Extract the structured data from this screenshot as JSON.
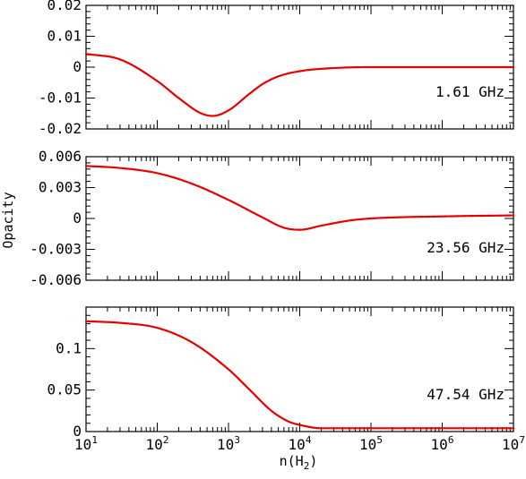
{
  "chart_data": {
    "type": "line",
    "xscale": "log",
    "xlim": [
      10,
      10000000
    ],
    "x_tick_labels": [
      {
        "base": "10",
        "exp": "1"
      },
      {
        "base": "10",
        "exp": "2"
      },
      {
        "base": "10",
        "exp": "3"
      },
      {
        "base": "10",
        "exp": "4"
      },
      {
        "base": "10",
        "exp": "5"
      },
      {
        "base": "10",
        "exp": "6"
      },
      {
        "base": "10",
        "exp": "7"
      }
    ],
    "xlabel": {
      "main": "n(H",
      "sub": "2",
      "close": ")"
    },
    "ylabel": "Opacity",
    "line_color": "#e60000",
    "panels": [
      {
        "label": "1.61 GHz",
        "ylim": [
          -0.02,
          0.02
        ],
        "y_ticks": [
          -0.02,
          -0.01,
          0,
          0.01,
          0.02
        ],
        "y_tick_labels": [
          "-0.02",
          "-0.01",
          "0",
          "0.01",
          "0.02"
        ],
        "x": [
          10,
          30,
          100,
          200,
          400,
          600,
          1000,
          2000,
          3000,
          5000,
          10000,
          30000,
          100000,
          1000000,
          10000000
        ],
        "y": [
          0.0043,
          0.0025,
          -0.0045,
          -0.01,
          -0.0148,
          -0.0158,
          -0.014,
          -0.0085,
          -0.0055,
          -0.003,
          -0.0013,
          -0.0003,
          0.0,
          0.0,
          0.0
        ]
      },
      {
        "label": "23.56 GHz",
        "ylim": [
          -0.006,
          0.006
        ],
        "y_ticks": [
          -0.006,
          -0.003,
          0,
          0.003,
          0.006
        ],
        "y_tick_labels": [
          "-0.006",
          "-0.003",
          "0",
          "0.003",
          "0.006"
        ],
        "x": [
          10,
          30,
          100,
          300,
          1000,
          3000,
          6000,
          10000,
          20000,
          50000,
          100000,
          1000000,
          10000000
        ],
        "y": [
          0.0051,
          0.0049,
          0.0044,
          0.0034,
          0.0018,
          0.0001,
          -0.0009,
          -0.0011,
          -0.0007,
          -0.0002,
          0.0,
          0.0002,
          0.0003
        ]
      },
      {
        "label": "47.54 GHz",
        "ylim": [
          0,
          0.15
        ],
        "y_ticks": [
          0,
          0.05,
          0.1
        ],
        "y_tick_labels": [
          "0",
          "0.05",
          "0.1"
        ],
        "x": [
          10,
          30,
          100,
          300,
          1000,
          2000,
          4000,
          7000,
          10000,
          20000,
          100000,
          10000000
        ],
        "y": [
          0.133,
          0.131,
          0.125,
          0.108,
          0.075,
          0.05,
          0.025,
          0.012,
          0.008,
          0.004,
          0.004,
          0.004
        ]
      }
    ]
  }
}
